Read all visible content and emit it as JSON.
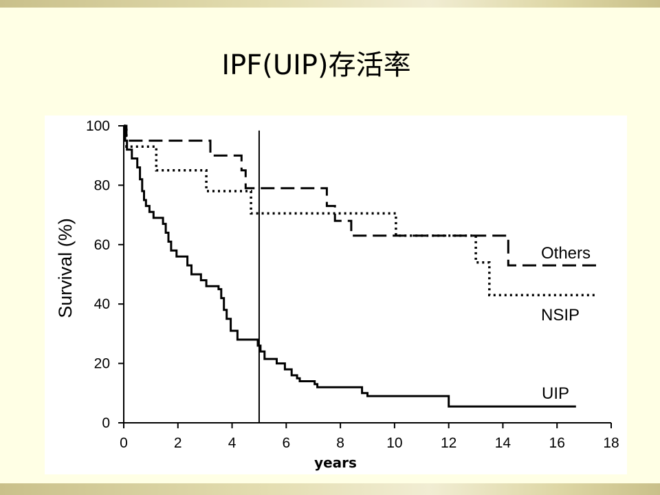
{
  "slide": {
    "title": "IPF(UIP)存活率",
    "colors": {
      "background": "#FFFFE5",
      "band": "#C9C08A",
      "plot_background": "#FFFFFF",
      "ink": "#000000"
    }
  },
  "chart_data": {
    "type": "line",
    "step": true,
    "xlabel": "years",
    "ylabel": "Survival (%)",
    "xlim": [
      0,
      18
    ],
    "ylim": [
      0,
      100
    ],
    "xticks": [
      0,
      2,
      4,
      6,
      8,
      10,
      12,
      14,
      16,
      18
    ],
    "yticks": [
      0,
      20,
      40,
      60,
      80,
      100
    ],
    "grid": false,
    "reference_line_x": 5,
    "series": [
      {
        "name": "Others",
        "line_style": "dashed",
        "points": [
          [
            0,
            100
          ],
          [
            0.1,
            95
          ],
          [
            3.2,
            90
          ],
          [
            4.35,
            85
          ],
          [
            4.5,
            79
          ],
          [
            7.5,
            73
          ],
          [
            7.8,
            68
          ],
          [
            8.4,
            63
          ],
          [
            14.2,
            53
          ],
          [
            17.6,
            53
          ]
        ]
      },
      {
        "name": "NSIP",
        "line_style": "dotted",
        "points": [
          [
            0,
            100
          ],
          [
            0.1,
            93
          ],
          [
            1.2,
            85
          ],
          [
            3.05,
            78
          ],
          [
            4.7,
            70.5
          ],
          [
            10.05,
            63
          ],
          [
            13.0,
            54
          ],
          [
            13.5,
            43
          ],
          [
            17.4,
            43
          ]
        ]
      },
      {
        "name": "UIP",
        "line_style": "solid",
        "points": [
          [
            0,
            100
          ],
          [
            0.05,
            95
          ],
          [
            0.12,
            92
          ],
          [
            0.3,
            89
          ],
          [
            0.5,
            86
          ],
          [
            0.6,
            82
          ],
          [
            0.68,
            78
          ],
          [
            0.75,
            75
          ],
          [
            0.82,
            73
          ],
          [
            0.95,
            71
          ],
          [
            1.1,
            69
          ],
          [
            1.45,
            67
          ],
          [
            1.55,
            64
          ],
          [
            1.65,
            61
          ],
          [
            1.75,
            58
          ],
          [
            1.95,
            56
          ],
          [
            2.35,
            53
          ],
          [
            2.5,
            50
          ],
          [
            2.85,
            48
          ],
          [
            3.05,
            46
          ],
          [
            3.5,
            45
          ],
          [
            3.6,
            42
          ],
          [
            3.7,
            38
          ],
          [
            3.8,
            35
          ],
          [
            3.95,
            31
          ],
          [
            4.2,
            28
          ],
          [
            4.95,
            26
          ],
          [
            5.05,
            24
          ],
          [
            5.2,
            21.5
          ],
          [
            5.65,
            20
          ],
          [
            5.95,
            18
          ],
          [
            6.2,
            16
          ],
          [
            6.4,
            15
          ],
          [
            6.5,
            14
          ],
          [
            7.05,
            13
          ],
          [
            7.15,
            12
          ],
          [
            8.7,
            12
          ],
          [
            8.8,
            10
          ],
          [
            9.0,
            9
          ],
          [
            12.0,
            5.5
          ],
          [
            16.7,
            5.5
          ]
        ]
      }
    ]
  }
}
